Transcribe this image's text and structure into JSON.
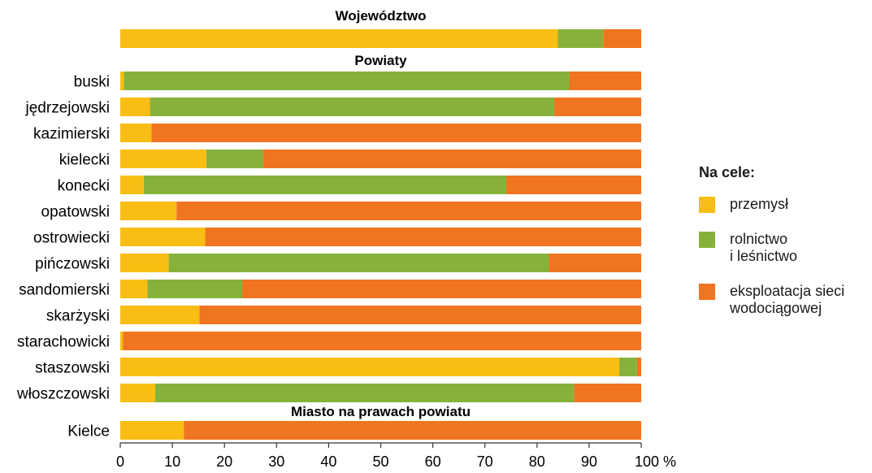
{
  "colors": {
    "przemysl": "#f9be14",
    "rolnictwo": "#86b23c",
    "eksploatacja": "#ef7520"
  },
  "chart_data": {
    "type": "bar",
    "orientation": "horizontal",
    "stacked": true,
    "xlim": [
      0,
      100
    ],
    "x_ticks": [
      "0",
      "10",
      "20",
      "30",
      "40",
      "50",
      "60",
      "70",
      "80",
      "90",
      "100 %"
    ],
    "sections": [
      {
        "title": "Województwo",
        "categories": [
          ""
        ]
      },
      {
        "title": "Powiaty",
        "categories": [
          "buski",
          "jędrzejowski",
          "kazimierski",
          "kielecki",
          "konecki",
          "opatowski",
          "ostrowiecki",
          "pińczowski",
          "sandomierski",
          "skarżyski",
          "starachowicki",
          "staszowski",
          "włoszczowski"
        ]
      },
      {
        "title": "Miasto na prawach powiatu",
        "categories": [
          "Kielce"
        ]
      }
    ],
    "categories": [
      "",
      "buski",
      "jędrzejowski",
      "kazimierski",
      "kielecki",
      "konecki",
      "opatowski",
      "ostrowiecki",
      "pińczowski",
      "sandomierski",
      "skarżyski",
      "starachowicki",
      "staszowski",
      "włoszczowski",
      "Kielce"
    ],
    "series": [
      {
        "name": "przemysł",
        "color": "#f9be14",
        "values": [
          84,
          0.7,
          5.7,
          6,
          16.5,
          4.5,
          10.8,
          16.3,
          9.3,
          5.2,
          15.2,
          0.5,
          95.8,
          6.7,
          12.2
        ]
      },
      {
        "name": "rolnictwo i leśnictwo",
        "color": "#86b23c",
        "values": [
          8.7,
          85.5,
          77.6,
          0,
          10.9,
          69.6,
          0,
          0,
          73,
          18.2,
          0,
          0,
          3.4,
          80.4,
          0
        ]
      },
      {
        "name": "eksploatacja sieci wodociągowej",
        "color": "#ef7520",
        "values": [
          7.3,
          13.8,
          16.7,
          94,
          72.6,
          25.9,
          89.2,
          83.7,
          17.7,
          76.6,
          84.8,
          99.5,
          0.8,
          12.9,
          87.8
        ]
      }
    ],
    "legend": {
      "title": "Na cele:",
      "position": "right",
      "items": [
        {
          "lines": [
            "przemysł"
          ],
          "color": "#f9be14"
        },
        {
          "lines": [
            "rolnictwo",
            "i leśnictwo"
          ],
          "color": "#86b23c"
        },
        {
          "lines": [
            "eksploatacja sieci",
            "wodociągowej"
          ],
          "color": "#ef7520"
        }
      ]
    }
  }
}
